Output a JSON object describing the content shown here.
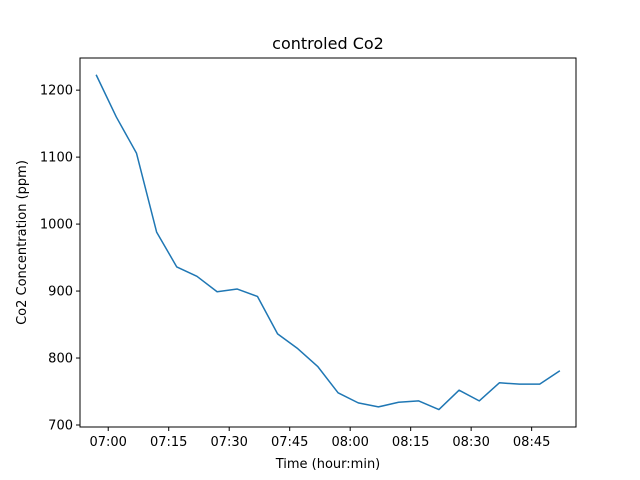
{
  "chart_data": {
    "type": "line",
    "title": "controled Co2",
    "xlabel": "Time (hour:min)",
    "ylabel": "Co2 Concentration (ppm)",
    "x": [
      "06:57",
      "07:02",
      "07:07",
      "07:12",
      "07:17",
      "07:22",
      "07:27",
      "07:32",
      "07:37",
      "07:42",
      "07:47",
      "07:52",
      "07:57",
      "08:02",
      "08:07",
      "08:12",
      "08:17",
      "08:22",
      "08:27",
      "08:32",
      "08:37",
      "08:42",
      "08:47",
      "08:52"
    ],
    "series": [
      {
        "values": [
          1223,
          1160,
          1106,
          988,
          936,
          922,
          899,
          903,
          892,
          836,
          814,
          787,
          748,
          733,
          727,
          734,
          736,
          723,
          752,
          736,
          763,
          761,
          761,
          781
        ],
        "color": "#1f77b4"
      }
    ],
    "xticks": [
      "07:00",
      "07:15",
      "07:30",
      "07:45",
      "08:00",
      "08:15",
      "08:30",
      "08:45"
    ],
    "yticks": [
      700,
      800,
      900,
      1000,
      1100,
      1200
    ],
    "xlim": [
      "06:53",
      "08:56"
    ],
    "ylim": [
      697,
      1248
    ],
    "grid": false,
    "legend": "none"
  }
}
